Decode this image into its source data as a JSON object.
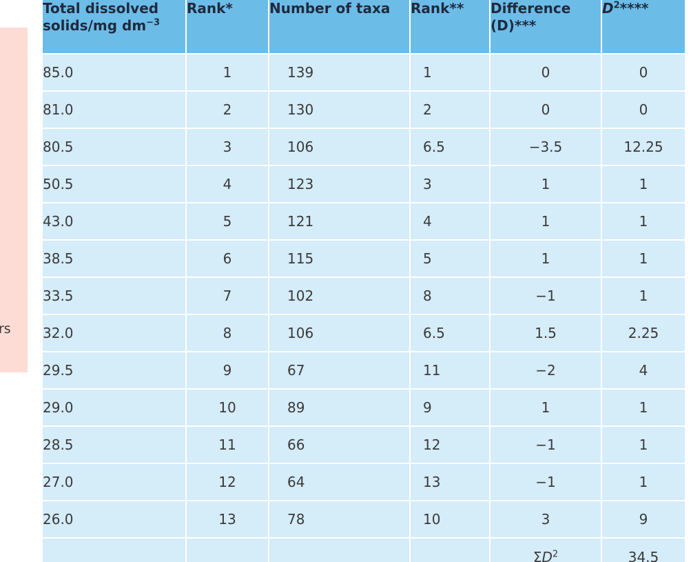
{
  "side_fragment": "rs",
  "headers": {
    "tds_line1": "Total dissolved",
    "tds_line2": "solids/mg dm",
    "tds_exp": "−3",
    "rank1": "Rank*",
    "taxa": "Number of taxa",
    "rank2": "Rank**",
    "diff_line1": "Difference",
    "diff_line2": "(D)***",
    "dsq_base": "D",
    "dsq_sup": "2",
    "dsq_stars": "****"
  },
  "rows": [
    {
      "tds": "85.0",
      "rank1": "1",
      "taxa": "139",
      "rank2": "1",
      "diff": "0",
      "dsq": "0"
    },
    {
      "tds": "81.0",
      "rank1": "2",
      "taxa": "130",
      "rank2": "2",
      "diff": "0",
      "dsq": "0"
    },
    {
      "tds": "80.5",
      "rank1": "3",
      "taxa": "106",
      "rank2": "6.5",
      "diff": "−3.5",
      "dsq": "12.25"
    },
    {
      "tds": "50.5",
      "rank1": "4",
      "taxa": "123",
      "rank2": "3",
      "diff": "1",
      "dsq": "1"
    },
    {
      "tds": "43.0",
      "rank1": "5",
      "taxa": "121",
      "rank2": "4",
      "diff": "1",
      "dsq": "1"
    },
    {
      "tds": "38.5",
      "rank1": "6",
      "taxa": "115",
      "rank2": "5",
      "diff": "1",
      "dsq": "1"
    },
    {
      "tds": "33.5",
      "rank1": "7",
      "taxa": "102",
      "rank2": "8",
      "diff": "−1",
      "dsq": "1"
    },
    {
      "tds": "32.0",
      "rank1": "8",
      "taxa": "106",
      "rank2": "6.5",
      "diff": "1.5",
      "dsq": "2.25"
    },
    {
      "tds": "29.5",
      "rank1": "9",
      "taxa": "67",
      "rank2": "11",
      "diff": "−2",
      "dsq": "4"
    },
    {
      "tds": "29.0",
      "rank1": "10",
      "taxa": "89",
      "rank2": "9",
      "diff": "1",
      "dsq": "1"
    },
    {
      "tds": "28.5",
      "rank1": "11",
      "taxa": "66",
      "rank2": "12",
      "diff": "−1",
      "dsq": "1"
    },
    {
      "tds": "27.0",
      "rank1": "12",
      "taxa": "64",
      "rank2": "13",
      "diff": "−1",
      "dsq": "1"
    },
    {
      "tds": "26.0",
      "rank1": "13",
      "taxa": "78",
      "rank2": "10",
      "diff": "3",
      "dsq": "9"
    }
  ],
  "sum_row": {
    "label_sigma": "Σ",
    "label_d": "D",
    "label_sup": "2",
    "value": "34.5"
  }
}
